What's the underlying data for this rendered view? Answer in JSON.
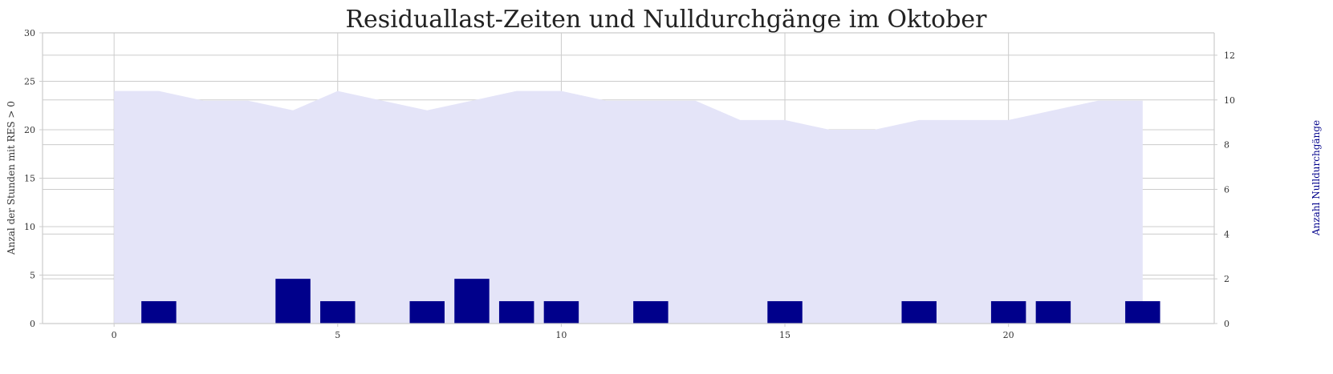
{
  "chart_data": {
    "type": "bar",
    "title": "Residuallast-Zeiten und Nulldurchgänge im Oktober",
    "xlabel": "",
    "xlim": [
      -1.6,
      24.6
    ],
    "x_ticks": [
      0,
      5,
      10,
      15,
      20
    ],
    "x_tick_labels": [
      "0",
      "5",
      "10",
      "15",
      "20"
    ],
    "y_left": {
      "label": "Anzal der Stunden mit RES > 0",
      "lim": [
        0,
        30
      ],
      "ticks": [
        0,
        5,
        10,
        15,
        20,
        25,
        30
      ],
      "tick_labels": [
        "0",
        "5",
        "10",
        "15",
        "20",
        "25",
        "30"
      ]
    },
    "y_right": {
      "label": "Anzahl Nulldurchgänge",
      "lim": [
        0,
        13
      ],
      "ticks": [
        0,
        2,
        4,
        6,
        8,
        10,
        12
      ],
      "tick_labels": [
        "0",
        "2",
        "4",
        "6",
        "8",
        "10",
        "12"
      ],
      "label_color": "#00008b"
    },
    "series": [
      {
        "type": "area",
        "axis": "left",
        "color": "#e4e4f8",
        "x": [
          0,
          1,
          2,
          3,
          4,
          5,
          6,
          7,
          8,
          9,
          10,
          11,
          12,
          13,
          14,
          15,
          16,
          17,
          18,
          19,
          20,
          21,
          22,
          23
        ],
        "values": [
          24,
          24,
          23,
          23,
          22,
          24,
          23,
          22,
          23,
          24,
          24,
          23,
          23,
          23,
          21,
          21,
          20,
          20,
          21,
          21,
          21,
          22,
          23,
          23
        ]
      },
      {
        "type": "bar",
        "axis": "right",
        "color": "#00008b",
        "x": [
          0,
          1,
          2,
          3,
          4,
          5,
          6,
          7,
          8,
          9,
          10,
          11,
          12,
          13,
          14,
          15,
          16,
          17,
          18,
          19,
          20,
          21,
          22,
          23
        ],
        "values": [
          0,
          1,
          0,
          0,
          2,
          1,
          0,
          1,
          2,
          1,
          1,
          0,
          1,
          0,
          0,
          1,
          0,
          0,
          1,
          0,
          1,
          1,
          0,
          1
        ]
      }
    ],
    "grid": true,
    "grid_color": "#cccccc",
    "legend": "none"
  }
}
